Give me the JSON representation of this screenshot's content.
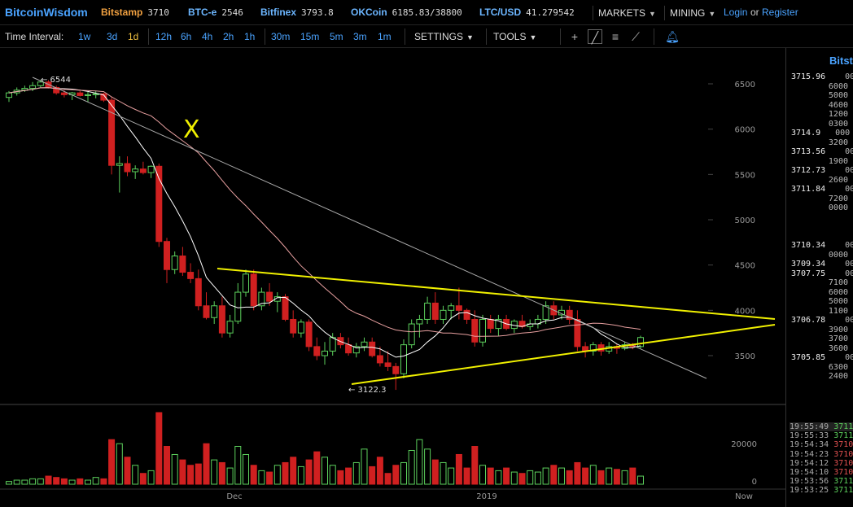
{
  "header": {
    "brand": "BitcoinWisdom",
    "tickers": [
      {
        "name": "Bitstamp",
        "value": "3710",
        "color": "orange"
      },
      {
        "name": "BTC-e",
        "value": "2546",
        "color": "blue"
      },
      {
        "name": "Bitfinex",
        "value": "3793.8",
        "color": "blue"
      },
      {
        "name": "OKCoin",
        "value": "6185.83/38800",
        "color": "blue"
      },
      {
        "name": "LTC/USD",
        "value": "41.279542",
        "color": "blue"
      }
    ],
    "markets_label": "MARKETS",
    "mining_label": "MINING",
    "login_label": "Login",
    "or_label": "or",
    "register_label": "Register"
  },
  "toolbar": {
    "time_interval_label": "Time Interval:",
    "intervals": [
      "1w",
      "3d",
      "1d",
      "12h",
      "6h",
      "4h",
      "2h",
      "1h",
      "30m",
      "15m",
      "5m",
      "3m",
      "1m"
    ],
    "active_interval": "1d",
    "settings_label": "SETTINGS",
    "tools_label": "TOOLS"
  },
  "chart_data": {
    "type": "candlestick",
    "y_ticks": [
      6500,
      6000,
      5500,
      5000,
      4500,
      4000,
      3500
    ],
    "volume_ticks": [
      20000,
      0
    ],
    "x_labels": [
      "Dec",
      "2019",
      "Now"
    ],
    "annotations": {
      "high_label": "6544",
      "low_label": "3122.3",
      "mark": "X"
    },
    "colors": {
      "up": "#5cd05c",
      "down": "#d02020",
      "trend": "#f0f000",
      "ma_fast": "#ffffff",
      "ma_slow": "#e8a0a0"
    },
    "candles": [
      [
        6350,
        6420,
        6300,
        6400
      ],
      [
        6400,
        6460,
        6370,
        6430
      ],
      [
        6430,
        6480,
        6410,
        6450
      ],
      [
        6450,
        6520,
        6420,
        6480
      ],
      [
        6480,
        6544,
        6460,
        6520
      ],
      [
        6520,
        6540,
        6450,
        6460
      ],
      [
        6460,
        6480,
        6380,
        6400
      ],
      [
        6400,
        6430,
        6350,
        6380
      ],
      [
        6380,
        6410,
        6320,
        6400
      ],
      [
        6400,
        6420,
        6360,
        6370
      ],
      [
        6370,
        6410,
        6300,
        6380
      ],
      [
        6380,
        6420,
        6340,
        6390
      ],
      [
        6390,
        6400,
        6300,
        6320
      ],
      [
        6320,
        6350,
        5500,
        5600
      ],
      [
        5600,
        5700,
        5300,
        5620
      ],
      [
        5620,
        5700,
        5480,
        5530
      ],
      [
        5530,
        5600,
        5450,
        5560
      ],
      [
        5560,
        5640,
        5500,
        5520
      ],
      [
        5520,
        5600,
        5460,
        5590
      ],
      [
        5590,
        5620,
        4700,
        4760
      ],
      [
        4760,
        4800,
        4300,
        4450
      ],
      [
        4450,
        4650,
        4400,
        4600
      ],
      [
        4600,
        4700,
        4380,
        4420
      ],
      [
        4420,
        4520,
        4300,
        4350
      ],
      [
        4350,
        4450,
        4000,
        4050
      ],
      [
        4050,
        4200,
        3900,
        3920
      ],
      [
        3920,
        4100,
        3850,
        4050
      ],
      [
        4050,
        4150,
        3700,
        3750
      ],
      [
        3750,
        3950,
        3700,
        3880
      ],
      [
        3880,
        4300,
        3850,
        4200
      ],
      [
        4200,
        4450,
        4150,
        4400
      ],
      [
        4400,
        4450,
        4000,
        4050
      ],
      [
        4050,
        4250,
        4000,
        4200
      ],
      [
        4200,
        4300,
        4050,
        4100
      ],
      [
        4100,
        4200,
        3980,
        4150
      ],
      [
        4150,
        4180,
        3880,
        3900
      ],
      [
        3900,
        4000,
        3700,
        3750
      ],
      [
        3750,
        3900,
        3700,
        3870
      ],
      [
        3870,
        3900,
        3550,
        3600
      ],
      [
        3600,
        3700,
        3450,
        3500
      ],
      [
        3500,
        3650,
        3400,
        3550
      ],
      [
        3550,
        3750,
        3500,
        3700
      ],
      [
        3700,
        3750,
        3580,
        3620
      ],
      [
        3620,
        3700,
        3500,
        3530
      ],
      [
        3530,
        3640,
        3480,
        3600
      ],
      [
        3600,
        3700,
        3550,
        3650
      ],
      [
        3650,
        3700,
        3480,
        3500
      ],
      [
        3500,
        3600,
        3380,
        3420
      ],
      [
        3420,
        3550,
        3330,
        3380
      ],
      [
        3380,
        3420,
        3122,
        3300
      ],
      [
        3300,
        3680,
        3250,
        3620
      ],
      [
        3620,
        3900,
        3580,
        3850
      ],
      [
        3850,
        3950,
        3700,
        3900
      ],
      [
        3900,
        4150,
        3850,
        4080
      ],
      [
        4080,
        4200,
        3850,
        3900
      ],
      [
        3900,
        4050,
        3850,
        4000
      ],
      [
        4000,
        4080,
        3900,
        4050
      ],
      [
        4050,
        4250,
        3900,
        4000
      ],
      [
        4000,
        4020,
        3850,
        3900
      ],
      [
        3900,
        4000,
        3600,
        3650
      ],
      [
        3650,
        3950,
        3600,
        3900
      ],
      [
        3900,
        3950,
        3750,
        3800
      ],
      [
        3800,
        3950,
        3720,
        3900
      ],
      [
        3900,
        3950,
        3780,
        3800
      ],
      [
        3800,
        3900,
        3750,
        3880
      ],
      [
        3880,
        3950,
        3800,
        3820
      ],
      [
        3820,
        3900,
        3780,
        3850
      ],
      [
        3850,
        3950,
        3800,
        3900
      ],
      [
        3900,
        4100,
        3850,
        4050
      ],
      [
        4050,
        4100,
        3900,
        3950
      ],
      [
        3950,
        4050,
        3900,
        4000
      ],
      [
        4000,
        4050,
        3850,
        3900
      ],
      [
        3900,
        4000,
        3550,
        3600
      ],
      [
        3600,
        3650,
        3480,
        3550
      ],
      [
        3550,
        3650,
        3500,
        3620
      ],
      [
        3620,
        3650,
        3500,
        3550
      ],
      [
        3550,
        3650,
        3520,
        3600
      ],
      [
        3600,
        3630,
        3520,
        3580
      ],
      [
        3580,
        3650,
        3560,
        3620
      ],
      [
        3620,
        3640,
        3570,
        3600
      ],
      [
        3600,
        3720,
        3580,
        3700
      ]
    ],
    "volumes": [
      2,
      3,
      3,
      4,
      4,
      6,
      5,
      4,
      3,
      4,
      3,
      5,
      4,
      33,
      30,
      20,
      14,
      8,
      10,
      53,
      28,
      22,
      18,
      14,
      15,
      30,
      18,
      16,
      12,
      28,
      22,
      14,
      10,
      9,
      14,
      16,
      20,
      13,
      18,
      24,
      20,
      14,
      10,
      12,
      16,
      26,
      13,
      20,
      8,
      14,
      16,
      25,
      33,
      26,
      18,
      16,
      12,
      22,
      12,
      28,
      14,
      12,
      10,
      12,
      9,
      8,
      10,
      9,
      12,
      14,
      12,
      10,
      16,
      12,
      14,
      10,
      12,
      11,
      10,
      12,
      6
    ]
  },
  "right_panel": {
    "title": "Bitst",
    "order_book": [
      {
        "price": "3715.96",
        "amount": "00"
      },
      {
        "price": "",
        "amount": "6000"
      },
      {
        "price": "",
        "amount": "5000"
      },
      {
        "price": "",
        "amount": "4600"
      },
      {
        "price": "",
        "amount": "1200"
      },
      {
        "price": "",
        "amount": "0300"
      },
      {
        "price": "3714.9",
        "amount": "000"
      },
      {
        "price": "",
        "amount": "3200"
      },
      {
        "price": "3713.56",
        "amount": "00"
      },
      {
        "price": "",
        "amount": "1900"
      },
      {
        "price": "3712.73",
        "amount": "00"
      },
      {
        "price": "",
        "amount": "2600"
      },
      {
        "price": "3711.84",
        "amount": "00"
      },
      {
        "price": "",
        "amount": "7200"
      },
      {
        "price": "",
        "amount": "0000"
      },
      {
        "price": "",
        "amount": ""
      },
      {
        "price": "",
        "amount": ""
      },
      {
        "price": "",
        "amount": ""
      },
      {
        "price": "3710.34",
        "amount": "00"
      },
      {
        "price": "",
        "amount": "0000"
      },
      {
        "price": "3709.34",
        "amount": "00"
      },
      {
        "price": "3707.75",
        "amount": "00"
      },
      {
        "price": "",
        "amount": "7100"
      },
      {
        "price": "",
        "amount": "6000"
      },
      {
        "price": "",
        "amount": "5000"
      },
      {
        "price": "",
        "amount": "1100"
      },
      {
        "price": "3706.78",
        "amount": "00"
      },
      {
        "price": "",
        "amount": "3900"
      },
      {
        "price": "",
        "amount": "3700"
      },
      {
        "price": "",
        "amount": "3600"
      },
      {
        "price": "3705.85",
        "amount": "00"
      },
      {
        "price": "",
        "amount": "6300"
      },
      {
        "price": "",
        "amount": "2400"
      }
    ],
    "trades": [
      {
        "time": "19:55:49",
        "price": "3711",
        "side": "g"
      },
      {
        "time": "19:55:33",
        "price": "3711",
        "side": "g"
      },
      {
        "time": "19:54:34",
        "price": "3710",
        "side": "r"
      },
      {
        "time": "19:54:23",
        "price": "3710",
        "side": "r"
      },
      {
        "time": "19:54:12",
        "price": "3710",
        "side": "r"
      },
      {
        "time": "19:54:10",
        "price": "3710",
        "side": "r"
      },
      {
        "time": "19:53:56",
        "price": "3711",
        "side": "g"
      },
      {
        "time": "19:53:25",
        "price": "3711",
        "side": "g"
      }
    ]
  }
}
